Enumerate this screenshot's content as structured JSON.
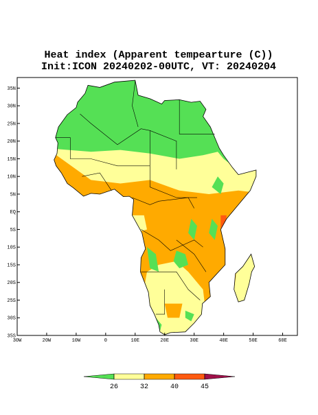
{
  "map": {
    "title": "Heat index (Apparent tempearture (C))",
    "subtitle": "Init:ICON 20240202-00UTC, VT: 20240204",
    "xlim": [
      -30,
      65
    ],
    "ylim": [
      -35,
      38
    ],
    "xticks": [
      {
        "value": -30,
        "label": "30W"
      },
      {
        "value": -20,
        "label": "20W"
      },
      {
        "value": -10,
        "label": "10W"
      },
      0,
      {
        "value": 10,
        "label": "10E"
      },
      {
        "value": 20,
        "label": "20E"
      },
      {
        "value": 30,
        "label": "30E"
      },
      {
        "value": 40,
        "label": "40E"
      },
      {
        "value": 50,
        "label": "50E"
      },
      {
        "value": 60,
        "label": "60E"
      }
    ],
    "yticks": [
      {
        "value": 35,
        "label": "35N"
      },
      {
        "value": 30,
        "label": "30N"
      },
      {
        "value": 25,
        "label": "25N"
      },
      {
        "value": 20,
        "label": "20N"
      },
      {
        "value": 15,
        "label": "15N"
      },
      {
        "value": 10,
        "label": "10N"
      },
      {
        "value": 5,
        "label": "5N"
      },
      {
        "value": 0,
        "label": "EQ"
      },
      {
        "value": -5,
        "label": "5S"
      },
      {
        "value": -10,
        "label": "10S"
      },
      {
        "value": -15,
        "label": "15S"
      },
      {
        "value": -20,
        "label": "20S"
      },
      {
        "value": -25,
        "label": "25S"
      },
      {
        "value": -30,
        "label": "30S"
      },
      {
        "value": -35,
        "label": "35S"
      }
    ],
    "colorbar": {
      "levels": [
        26,
        32,
        40,
        45
      ],
      "colors": [
        "#55e055",
        "#ffff99",
        "#ffaa00",
        "#ff5a10",
        "#a0104a"
      ]
    }
  }
}
